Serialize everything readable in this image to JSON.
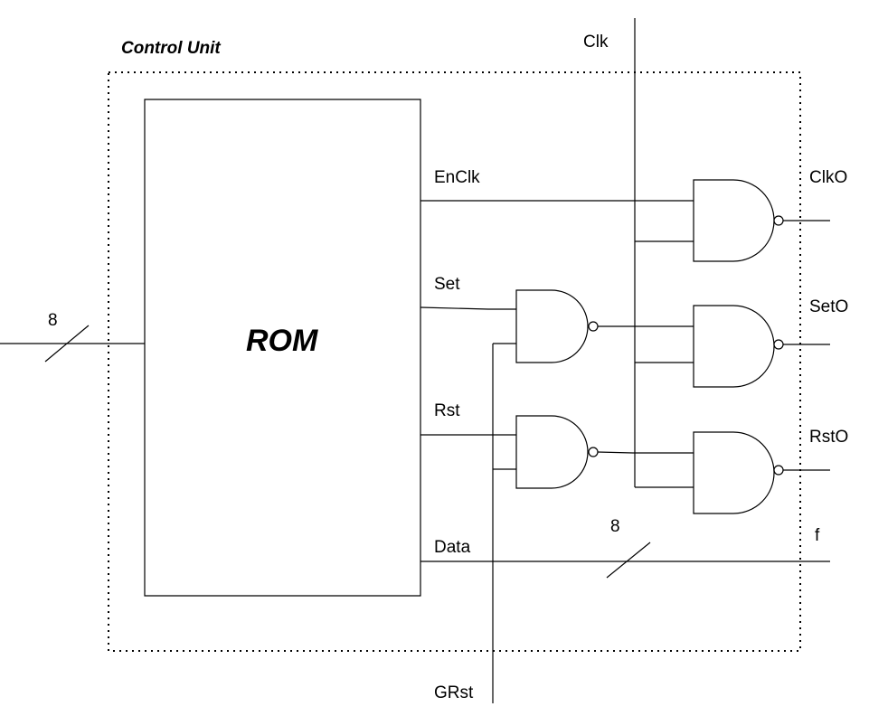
{
  "title": "Control Unit",
  "rom_label": "ROM",
  "inputs": {
    "address_bus_width": "8",
    "clk": "Clk",
    "grst": "GRst"
  },
  "rom_outputs": {
    "enclk": "EnClk",
    "set": "Set",
    "rst": "Rst",
    "data": "Data"
  },
  "outputs": {
    "clko": "ClkO",
    "seto": "SetO",
    "rsto": "RstO",
    "f": "f",
    "data_bus_width": "8"
  },
  "colors": {
    "stroke": "#000000",
    "background": "#ffffff"
  }
}
